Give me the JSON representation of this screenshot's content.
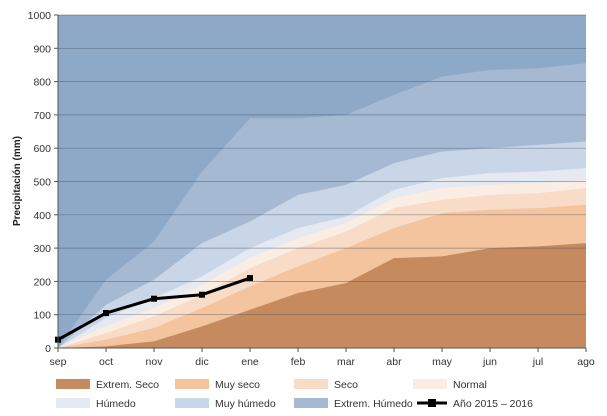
{
  "chart_data": {
    "type": "area",
    "ylabel": "Precipitación (mm)",
    "xlabel": "",
    "ylim": [
      0,
      1000
    ],
    "yticks": [
      0,
      100,
      200,
      300,
      400,
      500,
      600,
      700,
      800,
      900,
      1000
    ],
    "categories": [
      "sep",
      "oct",
      "nov",
      "dic",
      "ene",
      "feb",
      "mar",
      "abr",
      "may",
      "jun",
      "jul",
      "ago"
    ],
    "grid": true,
    "legend_position": "bottom",
    "bands": [
      {
        "name": "Extrem. Seco",
        "color": "#c58b5f",
        "values": [
          0,
          5,
          20,
          65,
          115,
          165,
          195,
          270,
          275,
          300,
          305,
          315
        ]
      },
      {
        "name": "Muy seco",
        "color": "#f4c49e",
        "values": [
          0,
          25,
          60,
          120,
          185,
          245,
          300,
          360,
          405,
          415,
          420,
          430
        ]
      },
      {
        "name": "Seco",
        "color": "#f8dcc8",
        "values": [
          0,
          45,
          95,
          160,
          240,
          300,
          350,
          420,
          445,
          460,
          465,
          480
        ]
      },
      {
        "name": "Normal",
        "color": "#faeee4",
        "values": [
          0,
          65,
          120,
          190,
          270,
          330,
          375,
          450,
          480,
          490,
          495,
          505
        ]
      },
      {
        "name": "Húmedo",
        "color": "#e5e9f1",
        "values": [
          0,
          90,
          150,
          215,
          300,
          360,
          395,
          475,
          510,
          525,
          530,
          540
        ]
      },
      {
        "name": "Muy húmedo",
        "color": "#c9d6e7",
        "values": [
          0,
          130,
          205,
          315,
          380,
          460,
          490,
          555,
          590,
          600,
          610,
          620
        ]
      },
      {
        "name": "Extrem. Húmedo",
        "color": "#a6b9d3",
        "values": [
          0,
          205,
          320,
          530,
          690,
          690,
          700,
          760,
          815,
          835,
          840,
          855
        ]
      }
    ],
    "series": [
      {
        "name": "Año 2015 – 2016",
        "color": "#000000",
        "values": [
          25,
          105,
          148,
          160,
          210,
          null,
          null,
          null,
          null,
          null,
          null,
          null
        ]
      }
    ],
    "background_color": "#8ea8c8"
  }
}
